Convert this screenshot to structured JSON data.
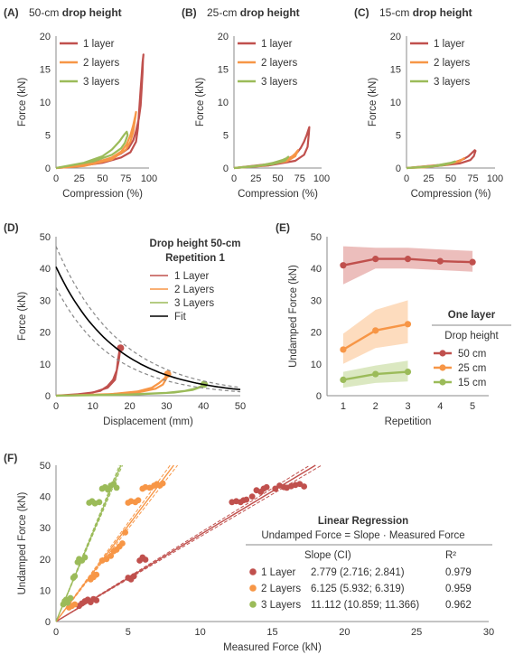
{
  "chart_data": [
    {
      "panel": "(A)",
      "title_pre": "50-cm",
      "title_bold": "drop height",
      "type": "line",
      "xlabel": "Compression (%)",
      "ylabel": "Force (kN)",
      "xlim": [
        0,
        100
      ],
      "ylim": [
        0,
        20
      ],
      "xticks": [
        "0",
        "25",
        "50",
        "75",
        "100"
      ],
      "yticks": [
        "0",
        "5",
        "10",
        "15",
        "20"
      ],
      "legend": [
        "1 layer",
        "2 layers",
        "3 layers"
      ],
      "series": [
        {
          "name": "1 layer",
          "color": "#c0504d",
          "x": [
            0,
            40,
            60,
            70,
            78,
            83,
            86,
            89,
            91,
            92,
            93,
            93.5,
            94,
            93,
            92,
            91,
            90,
            89,
            88,
            86,
            80,
            70,
            50,
            20,
            0
          ],
          "y": [
            0,
            0.8,
            1.5,
            2.2,
            3.0,
            4.2,
            5.6,
            7.5,
            9.5,
            12,
            14.5,
            16.5,
            17.2,
            16,
            14,
            12,
            10,
            8,
            6,
            4,
            2.4,
            1.6,
            0.8,
            0.2,
            0
          ]
        },
        {
          "name": "2 layers",
          "color": "#f79646",
          "x": [
            0,
            40,
            60,
            70,
            76,
            80,
            83,
            85,
            86,
            85,
            83,
            80,
            75,
            60,
            30,
            0
          ],
          "y": [
            0,
            0.7,
            1.6,
            2.5,
            3.6,
            5.0,
            6.5,
            7.8,
            8.5,
            7.5,
            5.5,
            4,
            2.8,
            1.3,
            0.3,
            0
          ]
        },
        {
          "name": "3 layers",
          "color": "#9bbb59",
          "x": [
            0,
            30,
            50,
            60,
            68,
            73,
            76,
            77,
            74,
            70,
            60,
            40,
            0
          ],
          "y": [
            0,
            0.8,
            1.8,
            2.8,
            4.0,
            5.0,
            5.5,
            5.0,
            3.8,
            3.0,
            2.0,
            1.0,
            0
          ]
        }
      ]
    },
    {
      "panel": "(B)",
      "title_pre": "25-cm",
      "title_bold": "drop height",
      "type": "line",
      "xlabel": "Compression (%)",
      "ylabel": "Force (kN)",
      "xlim": [
        0,
        100
      ],
      "ylim": [
        0,
        20
      ],
      "xticks": [
        "0",
        "25",
        "50",
        "75",
        "100"
      ],
      "yticks": [
        "0",
        "5",
        "10",
        "15",
        "20"
      ],
      "legend": [
        "1 layer",
        "2 layers",
        "3 layers"
      ],
      "series": [
        {
          "name": "1 layer",
          "color": "#c0504d",
          "x": [
            0,
            40,
            60,
            70,
            76,
            80,
            83,
            85,
            86,
            85.5,
            84,
            80,
            70,
            40,
            0
          ],
          "y": [
            0,
            0.6,
            1.3,
            2.0,
            3.0,
            4.0,
            5.0,
            5.8,
            6.2,
            5.2,
            3.2,
            2.0,
            1.1,
            0.4,
            0
          ]
        },
        {
          "name": "2 layers",
          "color": "#f79646",
          "x": [
            0,
            40,
            55,
            65,
            70,
            73,
            70,
            60,
            30,
            0
          ],
          "y": [
            0,
            0.5,
            1.0,
            1.6,
            2.2,
            2.7,
            1.8,
            1.0,
            0.3,
            0
          ]
        },
        {
          "name": "3 layers",
          "color": "#9bbb59",
          "x": [
            0,
            30,
            45,
            55,
            60,
            62,
            58,
            45,
            20,
            0
          ],
          "y": [
            0,
            0.4,
            0.8,
            1.2,
            1.5,
            1.7,
            1.1,
            0.6,
            0.2,
            0
          ]
        }
      ]
    },
    {
      "panel": "(C)",
      "title_pre": "15-cm",
      "title_bold": "drop height",
      "type": "line",
      "xlabel": "Compression (%)",
      "ylabel": "Force (kN)",
      "xlim": [
        0,
        100
      ],
      "ylim": [
        0,
        20
      ],
      "xticks": [
        "0",
        "25",
        "50",
        "75",
        "100"
      ],
      "yticks": [
        "0",
        "5",
        "10",
        "15",
        "20"
      ],
      "legend": [
        "1 layer",
        "2 layers",
        "3 layers"
      ],
      "series": [
        {
          "name": "1 layer",
          "color": "#c0504d",
          "x": [
            0,
            40,
            55,
            65,
            70,
            74,
            77,
            78,
            76,
            72,
            60,
            35,
            0
          ],
          "y": [
            0,
            0.5,
            0.9,
            1.4,
            1.8,
            2.3,
            2.7,
            2.6,
            1.8,
            1.2,
            0.7,
            0.3,
            0
          ]
        },
        {
          "name": "2 layers",
          "color": "#f79646",
          "x": [
            0,
            35,
            50,
            58,
            63,
            65,
            60,
            45,
            20,
            0
          ],
          "y": [
            0,
            0.4,
            0.7,
            1.0,
            1.3,
            1.5,
            1.0,
            0.5,
            0.1,
            0
          ]
        },
        {
          "name": "3 layers",
          "color": "#9bbb59",
          "x": [
            0,
            30,
            42,
            50,
            55,
            52,
            40,
            15,
            0
          ],
          "y": [
            0,
            0.3,
            0.6,
            0.8,
            1.0,
            0.8,
            0.4,
            0.1,
            0
          ]
        }
      ]
    },
    {
      "panel": "(D)",
      "legend_title_line1": "Drop height 50-cm",
      "legend_title_line2": "Repetition 1",
      "type": "line",
      "xlabel": "Displacement (mm)",
      "ylabel": "Force (kN)",
      "xlim": [
        0,
        50
      ],
      "ylim": [
        0,
        50
      ],
      "xticks": [
        "0",
        "10",
        "20",
        "30",
        "40",
        "50"
      ],
      "yticks": [
        "0",
        "10",
        "20",
        "30",
        "40",
        "50"
      ],
      "legend": [
        "1 Layer",
        "2 Layers",
        "3 Layers",
        "Fit"
      ],
      "series": [
        {
          "name": "1 Layer",
          "color": "#c0504d",
          "x": [
            0,
            8,
            12,
            14,
            15.5,
            16.5,
            17,
            17.3,
            17.5,
            17.2,
            16.8,
            16.5,
            16,
            14,
            10,
            5,
            0
          ],
          "y": [
            0,
            0.6,
            1.5,
            3,
            5,
            8,
            11,
            13.5,
            15,
            14,
            11,
            8,
            5,
            2.5,
            1,
            0.3,
            0
          ]
        },
        {
          "name": "2 Layers",
          "color": "#f79646",
          "x": [
            0,
            15,
            22,
            26,
            28,
            29.5,
            30.3,
            30,
            29,
            27,
            22,
            12,
            0
          ],
          "y": [
            0,
            0.5,
            1.3,
            2.5,
            4,
            5.5,
            6.8,
            5.5,
            3.5,
            2.2,
            1.0,
            0.3,
            0
          ]
        },
        {
          "name": "3 Layers",
          "color": "#9bbb59",
          "x": [
            0,
            20,
            30,
            35,
            38,
            39.5,
            40.2,
            39.5,
            37,
            32,
            20,
            0
          ],
          "y": [
            0,
            0.4,
            0.9,
            1.5,
            2.3,
            3.0,
            3.6,
            2.8,
            1.8,
            1.0,
            0.3,
            0
          ]
        },
        {
          "name": "Fit",
          "color": "#000000",
          "fit": {
            "a": 40.5,
            "b": -0.061
          }
        },
        {
          "name": "fit-band-upper",
          "color": "#888888",
          "dashed": true,
          "fit": {
            "a": 47,
            "b": -0.058
          }
        },
        {
          "name": "fit-band-lower",
          "color": "#888888",
          "dashed": true,
          "fit": {
            "a": 34,
            "b": -0.066
          }
        }
      ]
    },
    {
      "panel": "(E)",
      "legend_title": "One layer",
      "legend_subtitle": "Drop height",
      "type": "line",
      "xlabel": "Repetition",
      "ylabel": "Undamped Force (kN)",
      "xlim": [
        0.5,
        5.5
      ],
      "ylim": [
        0,
        50
      ],
      "xticks": [
        "1",
        "2",
        "3",
        "4",
        "5"
      ],
      "yticks": [
        "0",
        "10",
        "20",
        "30",
        "40",
        "50"
      ],
      "legend": [
        "50 cm",
        "25 cm",
        "15 cm"
      ],
      "series": [
        {
          "name": "50 cm",
          "color": "#c0504d",
          "band": "#e6a8a6",
          "x": [
            1,
            2,
            3,
            4,
            5
          ],
          "y": [
            41,
            43,
            43,
            42.3,
            42
          ],
          "lo": [
            35,
            40,
            40,
            39.5,
            39
          ],
          "hi": [
            47,
            46.5,
            46.5,
            46,
            45.5
          ]
        },
        {
          "name": "25 cm",
          "color": "#f79646",
          "band": "#fcd0a8",
          "x": [
            1,
            2,
            3
          ],
          "y": [
            14.5,
            20.5,
            22.5
          ],
          "lo": [
            10,
            15,
            16.5
          ],
          "hi": [
            19.5,
            27,
            30
          ]
        },
        {
          "name": "15 cm",
          "color": "#9bbb59",
          "band": "#cfe0ac",
          "x": [
            1,
            2,
            3
          ],
          "y": [
            5,
            6.8,
            7.5
          ],
          "lo": [
            2.5,
            4,
            4.5
          ],
          "hi": [
            7.5,
            9.5,
            11
          ]
        }
      ]
    },
    {
      "panel": "(F)",
      "legend_title": "Linear Regression",
      "legend_formula": "Undamped Force = Slope · Measured Force",
      "col_slope": "Slope (CI)",
      "col_r2": "R²",
      "type": "scatter",
      "xlabel": "Measured Force (kN)",
      "ylabel": "Undamped Force (kN)",
      "xlim": [
        0,
        30
      ],
      "ylim": [
        0,
        50
      ],
      "xticks": [
        "0",
        "5",
        "10",
        "15",
        "20",
        "25",
        "30"
      ],
      "yticks": [
        "0",
        "10",
        "20",
        "30",
        "40",
        "50"
      ],
      "rows": [
        {
          "name": "1 Layer",
          "slope_ci": "2.779 (2.716; 2.841)",
          "r2": "0.979"
        },
        {
          "name": "2 Layers",
          "slope_ci": "6.125 (5.932; 6.319)",
          "r2": "0.959"
        },
        {
          "name": "3 Layers",
          "slope_ci": "11.112 (10.859; 11.366)",
          "r2": "0.962"
        }
      ],
      "series": [
        {
          "name": "1 Layer",
          "color": "#c0504d",
          "slope": 2.779,
          "ci": [
            2.716,
            2.841
          ],
          "x": [
            1.6,
            1.8,
            2.0,
            2.2,
            2.4,
            2.6,
            2.8,
            5.0,
            5.2,
            5.4,
            5.8,
            6.0,
            6.2,
            12.2,
            12.5,
            12.8,
            13.0,
            13.2,
            13.6,
            13.9,
            14.2,
            14.4,
            14.6,
            15.2,
            15.5,
            15.8,
            16.0,
            16.3,
            16.6,
            16.9,
            17.2
          ],
          "y": [
            5,
            5.8,
            6.5,
            7,
            6.2,
            7.2,
            6.8,
            14,
            13.5,
            14.5,
            19.5,
            20.5,
            19.8,
            38.2,
            38.5,
            38.2,
            38.8,
            39,
            40,
            42,
            41.5,
            42.5,
            43,
            42.5,
            43.5,
            43,
            42.8,
            43.3,
            43.7,
            44,
            43.2
          ]
        },
        {
          "name": "2 Layers",
          "color": "#f79646",
          "slope": 6.125,
          "ci": [
            5.932,
            6.319
          ],
          "x": [
            0.9,
            1.1,
            1.3,
            2.4,
            2.6,
            2.8,
            3.2,
            3.5,
            3.8,
            4.0,
            4.2,
            4.4,
            4.6,
            4.8,
            5.0,
            5.2,
            5.5,
            5.7,
            6.0,
            6.2,
            6.5,
            6.8,
            7.0,
            7.2,
            7.4
          ],
          "y": [
            4.5,
            5.0,
            5.5,
            13.5,
            14.2,
            15,
            19.5,
            20,
            21,
            22.5,
            23,
            24,
            25,
            28.5,
            38,
            38.5,
            38.2,
            38.8,
            42.5,
            43,
            42.8,
            43.5,
            44,
            43.5,
            44.2
          ]
        },
        {
          "name": "3 Layers",
          "color": "#9bbb59",
          "slope": 11.112,
          "ci": [
            10.859,
            11.366
          ],
          "x": [
            0.5,
            0.6,
            0.7,
            0.8,
            1.0,
            1.2,
            1.3,
            1.5,
            1.6,
            1.8,
            2.0,
            2.3,
            2.5,
            2.7,
            3.0,
            3.2,
            3.4,
            3.6,
            3.8,
            4.0,
            4.2
          ],
          "y": [
            5.5,
            6.5,
            7,
            6,
            7.5,
            14,
            14.5,
            19,
            20,
            19.5,
            20.5,
            38,
            38.5,
            37.8,
            38.2,
            42.5,
            43,
            42.2,
            43.5,
            44,
            42.8
          ]
        }
      ]
    }
  ]
}
